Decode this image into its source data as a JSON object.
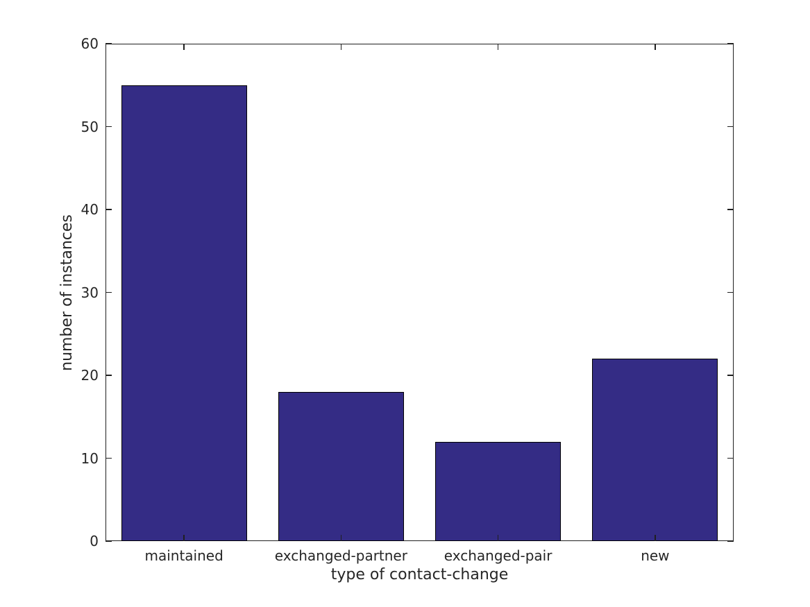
{
  "chart_data": {
    "type": "bar",
    "categories": [
      "maintained",
      "exchanged-partner",
      "exchanged-pair",
      "new"
    ],
    "values": [
      55,
      18,
      12,
      22
    ],
    "title": "",
    "xlabel": "type of contact-change",
    "ylabel": "number of instances",
    "ylim": [
      0,
      60
    ],
    "yticks": [
      0,
      10,
      20,
      30,
      40,
      50,
      60
    ],
    "ytick_labels": [
      "0",
      "10",
      "20",
      "30",
      "40",
      "50",
      "60"
    ],
    "bar_width_fraction": 0.8,
    "bar_fill_color": "#342c85",
    "bar_edge_color": "#000000",
    "axis_color": "#1f1f1f",
    "text_color": "#262626",
    "background_color": "#ffffff",
    "grid": false,
    "legend": "none",
    "tick_direction": "in",
    "box": "on"
  }
}
